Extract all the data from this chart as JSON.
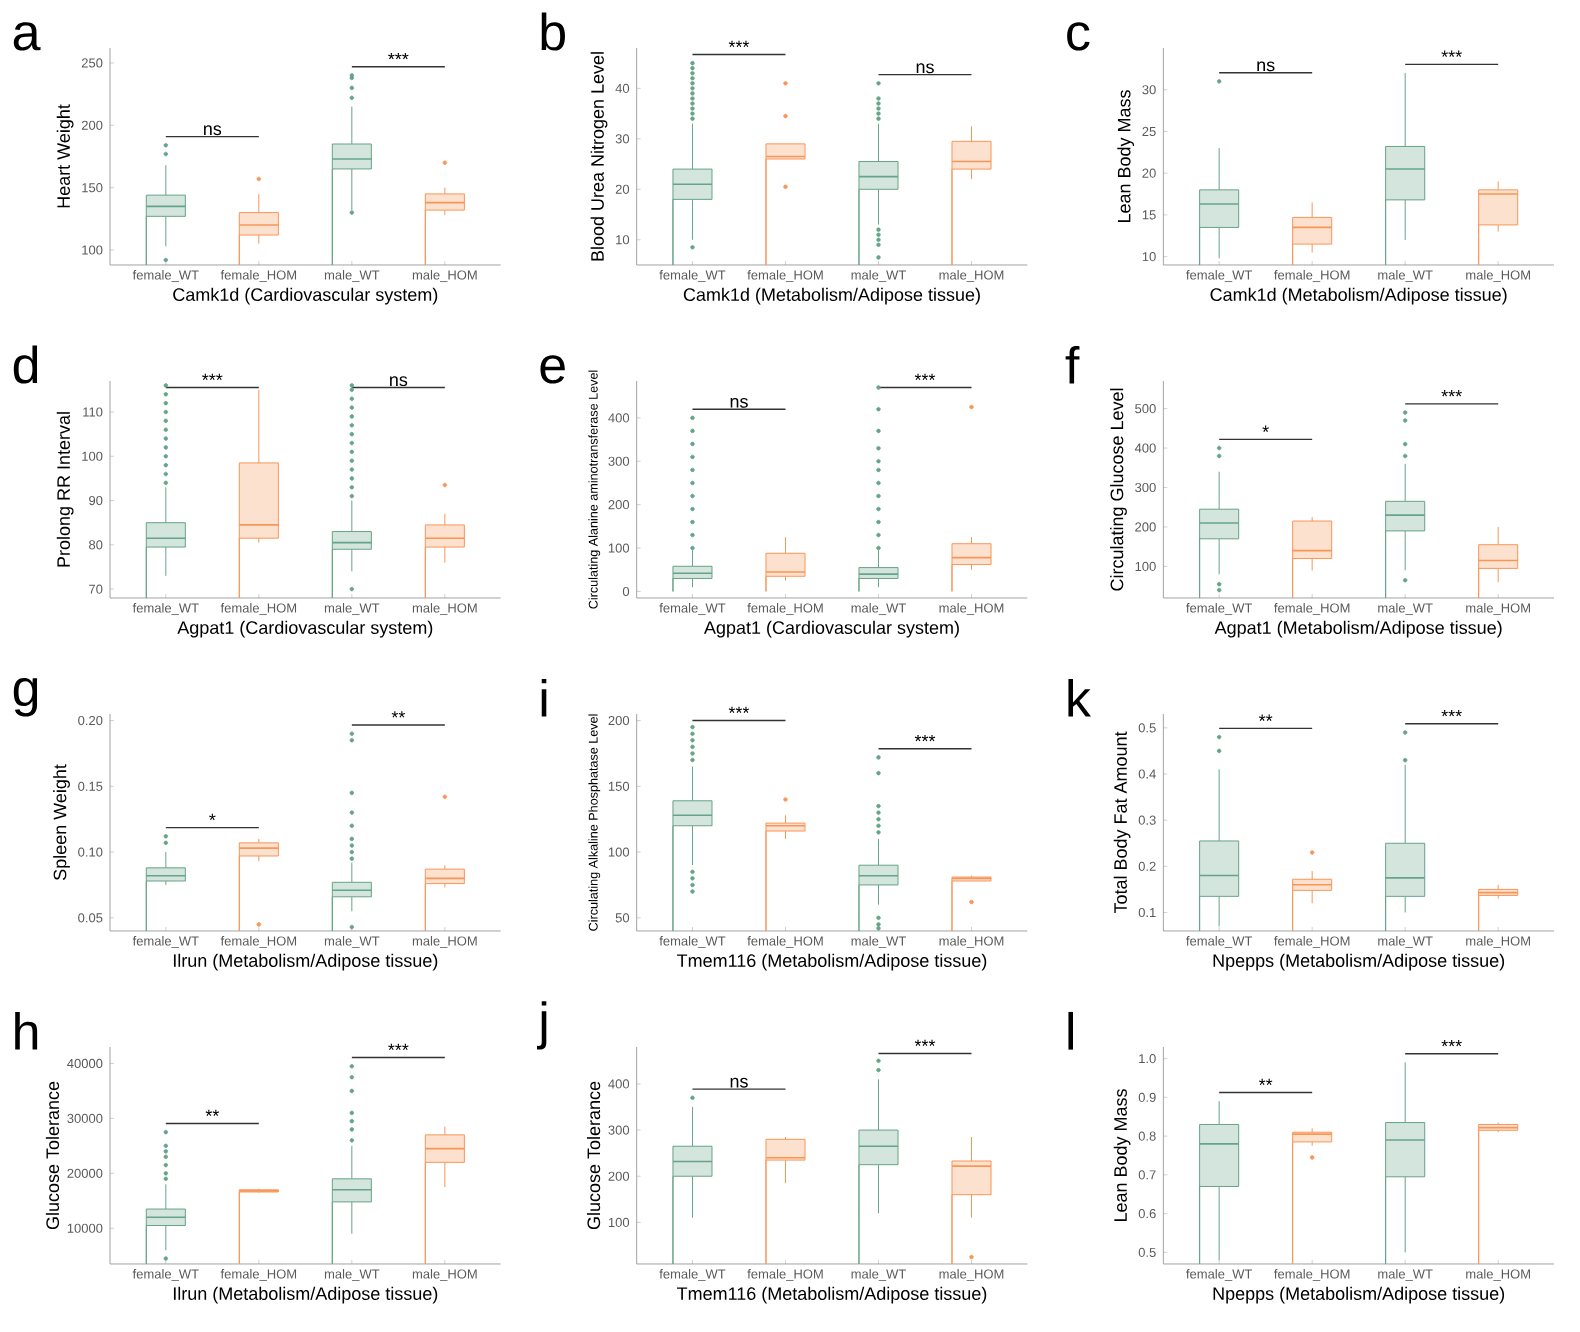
{
  "chart_data": [
    {
      "type": "box",
      "title": "a",
      "xlabel": "Camk1d (Cardiovascular system)",
      "ylabel": "Heart Weight",
      "categories": [
        "female_WT",
        "female_HOM",
        "male_WT",
        "male_HOM"
      ],
      "colors": [
        "#d3e5dd",
        "#fde1cf",
        "#d3e5dd",
        "#fde1cf"
      ],
      "ylim": [
        88,
        262
      ],
      "yticks": [
        100,
        150,
        200,
        250
      ],
      "boxes": [
        {
          "low": 103,
          "q1": 127,
          "median": 135,
          "q3": 144,
          "high": 168,
          "outliers": [
            92,
            177,
            184
          ]
        },
        {
          "low": 105,
          "q1": 112,
          "median": 120,
          "q3": 130,
          "high": 145,
          "outliers": [
            157
          ]
        },
        {
          "low": 132,
          "q1": 165,
          "median": 173,
          "q3": 185,
          "high": 215,
          "outliers": [
            130,
            222,
            230,
            238,
            240
          ]
        },
        {
          "low": 128,
          "q1": 132,
          "median": 138,
          "q3": 145,
          "high": 150,
          "outliers": [
            170
          ]
        }
      ],
      "annotations": [
        "ns",
        "***"
      ]
    },
    {
      "type": "box",
      "title": "b",
      "xlabel": "Camk1d (Metabolism/Adipose tissue)",
      "ylabel": "Blood Urea Nitrogen Level",
      "categories": [
        "female_WT",
        "female_HOM",
        "male_WT",
        "male_HOM"
      ],
      "colors": [
        "#d3e5dd",
        "#fde1cf",
        "#d3e5dd",
        "#fde1cf"
      ],
      "ylim": [
        5,
        48
      ],
      "yticks": [
        10,
        20,
        30,
        40
      ],
      "boxes": [
        {
          "low": 10,
          "q1": 18,
          "median": 21,
          "q3": 24,
          "high": 33,
          "outliers": [
            8.5,
            34,
            35,
            36,
            37,
            38,
            39,
            40,
            41,
            42,
            43,
            44,
            45
          ]
        },
        {
          "low": 26,
          "q1": 26,
          "median": 26.5,
          "q3": 29,
          "high": 29,
          "outliers": [
            20.5,
            34.5,
            41
          ]
        },
        {
          "low": 13,
          "q1": 20,
          "median": 22.5,
          "q3": 25.5,
          "high": 33,
          "outliers": [
            6.5,
            9,
            10,
            11,
            12,
            34,
            35,
            36,
            37,
            38,
            41
          ]
        },
        {
          "low": 22,
          "q1": 24,
          "median": 25.5,
          "q3": 29.5,
          "high": 32.5
        }
      ],
      "annotations": [
        "***",
        "ns"
      ]
    },
    {
      "type": "box",
      "title": "c",
      "xlabel": "Camk1d (Metabolism/Adipose tissue)",
      "ylabel": "Lean Body Mass",
      "categories": [
        "female_WT",
        "female_HOM",
        "male_WT",
        "male_HOM"
      ],
      "colors": [
        "#d3e5dd",
        "#fde1cf",
        "#d3e5dd",
        "#fde1cf"
      ],
      "ylim": [
        9,
        35
      ],
      "yticks": [
        10,
        15,
        20,
        25,
        30
      ],
      "boxes": [
        {
          "low": 9.8,
          "q1": 13.5,
          "median": 16.3,
          "q3": 18,
          "high": 23,
          "outliers": [
            31
          ]
        },
        {
          "low": 10.5,
          "q1": 11.5,
          "median": 13.5,
          "q3": 14.7,
          "high": 16.5
        },
        {
          "low": 12,
          "q1": 16.8,
          "median": 20.5,
          "q3": 23.2,
          "high": 32
        },
        {
          "low": 13,
          "q1": 13.8,
          "median": 17.5,
          "q3": 18,
          "high": 19
        }
      ],
      "annotations": [
        "ns",
        "***"
      ]
    },
    {
      "type": "box",
      "title": "d",
      "xlabel": "Agpat1 (Cardiovascular system)",
      "ylabel": "Prolong RR Interval",
      "categories": [
        "female_WT",
        "female_HOM",
        "male_WT",
        "male_HOM"
      ],
      "colors": [
        "#d3e5dd",
        "#fde1cf",
        "#d3e5dd",
        "#fde1cf"
      ],
      "ylim": [
        68,
        117
      ],
      "yticks": [
        70,
        80,
        90,
        100,
        110
      ],
      "boxes": [
        {
          "low": 73,
          "q1": 79.5,
          "median": 81.5,
          "q3": 85,
          "high": 93,
          "outliers": [
            94,
            96,
            98,
            100,
            102,
            104,
            106,
            108,
            110,
            112,
            114,
            116
          ]
        },
        {
          "low": 80.5,
          "q1": 81.5,
          "median": 84.5,
          "q3": 98.5,
          "high": 115
        },
        {
          "low": 74,
          "q1": 79,
          "median": 80.5,
          "q3": 83,
          "high": 90,
          "outliers": [
            70,
            91,
            93,
            95,
            97,
            99,
            101,
            103,
            105,
            107,
            109,
            111,
            113,
            115,
            116
          ]
        },
        {
          "low": 76,
          "q1": 79.5,
          "median": 81.5,
          "q3": 84.5,
          "high": 87,
          "outliers": [
            93.5
          ]
        }
      ],
      "annotations": [
        "***",
        "ns"
      ]
    },
    {
      "type": "box",
      "title": "e",
      "xlabel": "Agpat1 (Cardiovascular system)",
      "ylabel": "Circulating Alanine aminotransferase Level",
      "categories": [
        "female_WT",
        "female_HOM",
        "male_WT",
        "male_HOM"
      ],
      "colors": [
        "#d3e5dd",
        "#fde1cf",
        "#d3e5dd",
        "#fde1cf"
      ],
      "ylim": [
        -15,
        485
      ],
      "yticks": [
        0,
        100,
        200,
        300,
        400
      ],
      "boxes": [
        {
          "low": 10,
          "q1": 30,
          "median": 42,
          "q3": 58,
          "high": 95,
          "outliers": [
            100,
            130,
            160,
            190,
            220,
            250,
            280,
            310,
            340,
            370,
            400
          ]
        },
        {
          "low": 25,
          "q1": 35,
          "median": 45,
          "q3": 88,
          "high": 125
        },
        {
          "low": 10,
          "q1": 30,
          "median": 40,
          "q3": 55,
          "high": 95,
          "outliers": [
            100,
            130,
            160,
            190,
            220,
            250,
            280,
            300,
            330,
            370,
            420,
            470
          ]
        },
        {
          "low": 50,
          "q1": 62,
          "median": 78,
          "q3": 110,
          "high": 125,
          "outliers": [
            425
          ]
        }
      ],
      "annotations": [
        "ns",
        "***"
      ]
    },
    {
      "type": "box",
      "title": "f",
      "xlabel": "Agpat1 (Metabolism/Adipose tissue)",
      "ylabel": "Circulating Glucose Level",
      "categories": [
        "female_WT",
        "female_HOM",
        "male_WT",
        "male_HOM"
      ],
      "colors": [
        "#d3e5dd",
        "#fde1cf",
        "#d3e5dd",
        "#fde1cf"
      ],
      "ylim": [
        20,
        570
      ],
      "yticks": [
        100,
        200,
        300,
        400,
        500
      ],
      "boxes": [
        {
          "low": 80,
          "q1": 170,
          "median": 210,
          "q3": 245,
          "high": 340,
          "outliers": [
            40,
            55,
            380,
            400
          ]
        },
        {
          "low": 90,
          "q1": 120,
          "median": 140,
          "q3": 215,
          "high": 225
        },
        {
          "low": 90,
          "q1": 190,
          "median": 230,
          "q3": 265,
          "high": 360,
          "outliers": [
            65,
            380,
            410,
            470,
            490
          ]
        },
        {
          "low": 60,
          "q1": 95,
          "median": 115,
          "q3": 155,
          "high": 200
        }
      ],
      "annotations": [
        "*",
        "***"
      ]
    },
    {
      "type": "box",
      "title": "g",
      "xlabel": "Ilrun (Metabolism/Adipose tissue)",
      "ylabel": "Spleen Weight",
      "categories": [
        "female_WT",
        "female_HOM",
        "male_WT",
        "male_HOM"
      ],
      "colors": [
        "#d3e5dd",
        "#fde1cf",
        "#d3e5dd",
        "#fde1cf"
      ],
      "ylim": [
        0.04,
        0.205
      ],
      "yticks": [
        0.05,
        {
          "value": 0.1,
          "label": "0.10"
        },
        0.15,
        {
          "value": 0.2,
          "label": "0.20"
        }
      ],
      "boxes": [
        {
          "low": 0.075,
          "q1": 0.078,
          "median": 0.082,
          "q3": 0.088,
          "high": 0.1,
          "outliers": [
            0.107,
            0.112
          ]
        },
        {
          "low": 0.093,
          "q1": 0.097,
          "median": 0.103,
          "q3": 0.107,
          "high": 0.11,
          "outliers": [
            0.045
          ]
        },
        {
          "low": 0.055,
          "q1": 0.066,
          "median": 0.071,
          "q3": 0.077,
          "high": 0.092,
          "outliers": [
            0.043,
            0.095,
            0.1,
            0.105,
            0.11,
            0.12,
            0.13,
            0.145,
            0.185,
            0.19
          ]
        },
        {
          "low": 0.073,
          "q1": 0.076,
          "median": 0.08,
          "q3": 0.087,
          "high": 0.09,
          "outliers": [
            0.142
          ]
        }
      ],
      "annotations": [
        "*",
        "**"
      ]
    },
    {
      "type": "box",
      "title": "i",
      "xlabel": "Tmem116 (Metabolism/Adipose tissue)",
      "ylabel": "Circulating Alkaline Phosphatase Level",
      "categories": [
        "female_WT",
        "female_HOM",
        "male_WT",
        "male_HOM"
      ],
      "colors": [
        "#d3e5dd",
        "#fde1cf",
        "#d3e5dd",
        "#fde1cf"
      ],
      "ylim": [
        40,
        205
      ],
      "yticks": [
        50,
        100,
        150,
        200
      ],
      "boxes": [
        {
          "low": 90,
          "q1": 120,
          "median": 128,
          "q3": 139,
          "high": 165,
          "outliers": [
            70,
            75,
            80,
            85,
            170,
            175,
            180,
            185,
            190,
            195
          ]
        },
        {
          "low": 110,
          "q1": 116,
          "median": 120,
          "q3": 122,
          "high": 128,
          "outliers": [
            140
          ]
        },
        {
          "low": 60,
          "q1": 75,
          "median": 82,
          "q3": 90,
          "high": 110,
          "outliers": [
            42,
            45,
            50,
            115,
            120,
            125,
            130,
            135,
            160,
            172
          ]
        },
        {
          "low": 78,
          "q1": 78,
          "median": 80,
          "q3": 81,
          "high": 82,
          "outliers": [
            62
          ]
        }
      ],
      "annotations": [
        "***",
        "***"
      ]
    },
    {
      "type": "box",
      "title": "k",
      "xlabel": "Npepps (Metabolism/Adipose tissue)",
      "ylabel": "Total Body Fat Amount",
      "categories": [
        "female_WT",
        "female_HOM",
        "male_WT",
        "male_HOM"
      ],
      "colors": [
        "#d3e5dd",
        "#fde1cf",
        "#d3e5dd",
        "#fde1cf"
      ],
      "ylim": [
        0.06,
        0.53
      ],
      "yticks": [
        0.1,
        0.2,
        0.3,
        0.4,
        0.5
      ],
      "boxes": [
        {
          "low": 0.07,
          "q1": 0.135,
          "median": 0.18,
          "q3": 0.255,
          "high": 0.41,
          "outliers": [
            0.45,
            0.48
          ]
        },
        {
          "low": 0.12,
          "q1": 0.148,
          "median": 0.16,
          "q3": 0.172,
          "high": 0.19,
          "outliers": [
            0.23
          ]
        },
        {
          "low": 0.1,
          "q1": 0.135,
          "median": 0.175,
          "q3": 0.25,
          "high": 0.42,
          "outliers": [
            0.43,
            0.49
          ]
        },
        {
          "low": 0.13,
          "q1": 0.137,
          "median": 0.143,
          "q3": 0.15,
          "high": 0.16
        }
      ],
      "annotations": [
        "**",
        "***"
      ]
    },
    {
      "type": "box",
      "title": "h",
      "xlabel": "Ilrun (Metabolism/Adipose tissue)",
      "ylabel": "Glucose Tolerance",
      "categories": [
        "female_WT",
        "female_HOM",
        "male_WT",
        "male_HOM"
      ],
      "colors": [
        "#d3e5dd",
        "#fde1cf",
        "#d3e5dd",
        "#fde1cf"
      ],
      "ylim": [
        3500,
        43000
      ],
      "yticks": [
        10000,
        20000,
        30000,
        40000
      ],
      "boxes": [
        {
          "low": 6000,
          "q1": 10500,
          "median": 12000,
          "q3": 13500,
          "high": 18000,
          "outliers": [
            4500,
            19000,
            20000,
            21500,
            23000,
            24000,
            25000,
            27500
          ]
        },
        {
          "low": 16500,
          "q1": 16600,
          "median": 16800,
          "q3": 17000,
          "high": 17200
        },
        {
          "low": 9000,
          "q1": 14800,
          "median": 17000,
          "q3": 19000,
          "high": 25000,
          "outliers": [
            26000,
            28000,
            29500,
            31000,
            35000,
            37500,
            39500
          ]
        },
        {
          "low": 17500,
          "q1": 22000,
          "median": 24500,
          "q3": 27000,
          "high": 28500
        }
      ],
      "annotations": [
        "**",
        "***"
      ]
    },
    {
      "type": "box",
      "title": "j",
      "xlabel": "Tmem116 (Metabolism/Adipose tissue)",
      "ylabel": "Glucose Tolerance",
      "categories": [
        "female_WT",
        "female_HOM",
        "male_WT",
        "male_HOM"
      ],
      "colors": [
        "#d3e5dd",
        "#fde1cf",
        "#d3e5dd",
        "#fde1cf"
      ],
      "ylim": [
        10,
        480
      ],
      "yticks": [
        100,
        200,
        300,
        400
      ],
      "boxes": [
        {
          "low": 110,
          "q1": 200,
          "median": 232,
          "q3": 265,
          "high": 350,
          "outliers": [
            370
          ]
        },
        {
          "low": 185,
          "q1": 235,
          "median": 240,
          "q3": 280,
          "high": 285
        },
        {
          "low": 120,
          "q1": 225,
          "median": 265,
          "q3": 300,
          "high": 410,
          "outliers": [
            430,
            450
          ]
        },
        {
          "low": 110,
          "q1": 160,
          "median": 222,
          "q3": 233,
          "high": 285,
          "outliers": [
            25
          ]
        }
      ],
      "annotations": [
        "ns",
        "***"
      ]
    },
    {
      "type": "box",
      "title": "l",
      "xlabel": "Npepps (Metabolism/Adipose tissue)",
      "ylabel": "Lean Body Mass",
      "categories": [
        "female_WT",
        "female_HOM",
        "male_WT",
        "male_HOM"
      ],
      "colors": [
        "#d3e5dd",
        "#fde1cf",
        "#d3e5dd",
        "#fde1cf"
      ],
      "ylim": [
        0.47,
        1.03
      ],
      "yticks": [
        0.5,
        0.6,
        0.7,
        0.8,
        0.9,
        {
          "value": 1.0,
          "label": "1.0"
        }
      ],
      "boxes": [
        {
          "low": 0.48,
          "q1": 0.67,
          "median": 0.78,
          "q3": 0.83,
          "high": 0.89
        },
        {
          "low": 0.775,
          "q1": 0.785,
          "median": 0.805,
          "q3": 0.81,
          "high": 0.82,
          "outliers": [
            0.745
          ]
        },
        {
          "low": 0.5,
          "q1": 0.695,
          "median": 0.79,
          "q3": 0.835,
          "high": 0.99
        },
        {
          "low": 0.81,
          "q1": 0.815,
          "median": 0.822,
          "q3": 0.83,
          "high": 0.835
        }
      ],
      "annotations": [
        "**",
        "***"
      ]
    }
  ]
}
